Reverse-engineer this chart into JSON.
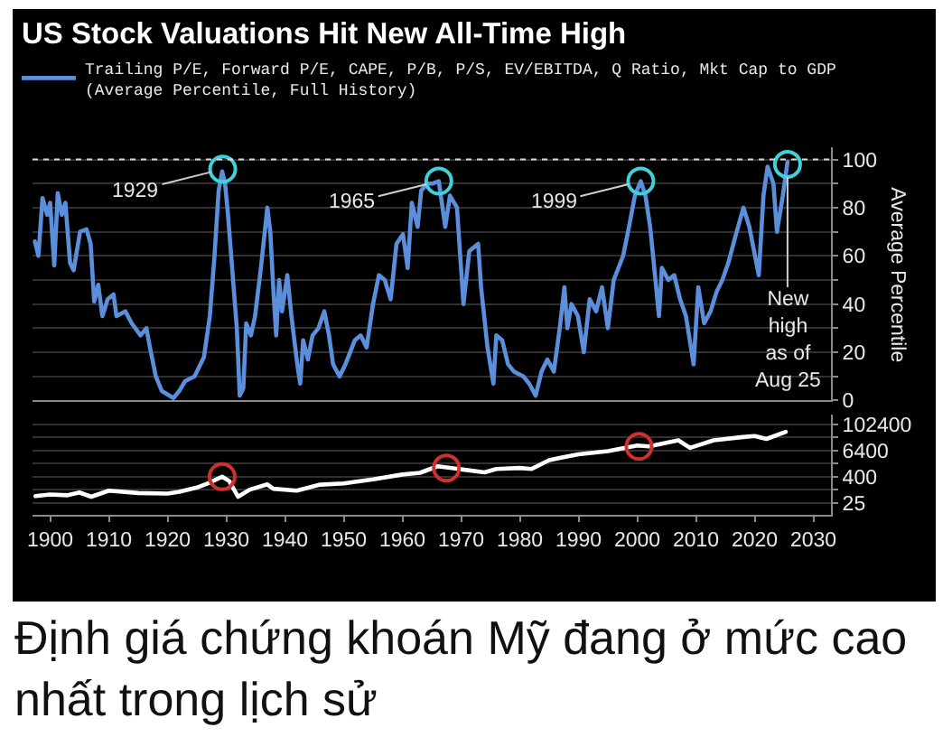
{
  "chart_data": [
    {
      "type": "line",
      "title": "US Stock Valuations Hit New All-Time High",
      "ylabel": "Average Percentile",
      "legend": "top left",
      "grid": "y",
      "tick_labels": "y",
      "xlim": [
        1897,
        2033
      ],
      "ylim": [
        0,
        105
      ],
      "yticks": [
        0,
        {
          "value": 10,
          "label": null
        },
        20,
        {
          "value": 30,
          "label": null
        },
        40,
        {
          "value": 50,
          "label": null
        },
        60,
        {
          "value": 70,
          "label": null
        },
        80,
        {
          "value": 90,
          "label": null
        },
        100
      ],
      "ref_lines": [
        {
          "axis": "y",
          "value": 100,
          "color": "#d9d9d9",
          "line_style": "dotted"
        }
      ],
      "annotations": [
        {
          "text": "1929",
          "x": 1929.4,
          "y": 96
        },
        {
          "text": "1965",
          "x": 1966.2,
          "y": 91
        },
        {
          "text": "1999",
          "x": 2000.6,
          "y": 91
        },
        {
          "text": "New high as of Aug 25",
          "x": 2025.6,
          "y": 98
        }
      ],
      "series": [
        {
          "name": "Trailing P/E, Forward P/E, CAPE, P/B, P/S, EV/EBITDA, Q Ratio, Mkt Cap to GDP (Average Percentile, Full History)",
          "color": "#5b8fdc",
          "x": [
            1897.4,
            1898,
            1898.7,
            1899.5,
            1900,
            1900.7,
            1901.3,
            1902,
            1902.6,
            1903.4,
            1904,
            1905.1,
            1906.2,
            1906.9,
            1907.5,
            1908.2,
            1908.9,
            1909.8,
            1910.8,
            1911.3,
            1912.8,
            1913.9,
            1915.4,
            1916.4,
            1917,
            1918,
            1919,
            1921,
            1922,
            1923,
            1924.6,
            1926.2,
            1927.2,
            1928,
            1928.7,
            1929.3,
            1929.8,
            1930.3,
            1931,
            1931.8,
            1932.3,
            1932.9,
            1933.4,
            1934.2,
            1934.9,
            1935.9,
            1937,
            1937.5,
            1938,
            1938.5,
            1939,
            1939.5,
            1940.4,
            1941.1,
            1942.1,
            1942.6,
            1943.1,
            1943.9,
            1944.7,
            1945.7,
            1946.7,
            1947.5,
            1948.2,
            1949.3,
            1950.3,
            1951.9,
            1952.9,
            1953.9,
            1955,
            1956,
            1957,
            1958,
            1959,
            1960.1,
            1960.9,
            1961.6,
            1962.6,
            1963.2,
            1964.2,
            1965.2,
            1966.2,
            1967.3,
            1968.1,
            1969.3,
            1970.4,
            1971.4,
            1972.9,
            1973.4,
            1974.5,
            1975.5,
            1976,
            1977,
            1978,
            1979,
            1980.6,
            1981.6,
            1982.7,
            1983.7,
            1984.7,
            1985.8,
            1986.8,
            1987.6,
            1988.1,
            1988.8,
            1989.9,
            1990.9,
            1991.9,
            1993,
            1994,
            1995,
            1996,
            1997.6,
            1998.6,
            1999.6,
            2000.6,
            2001.4,
            2002.2,
            2002.7,
            2003.7,
            2004.2,
            2005.3,
            2006.3,
            2007.3,
            2008.3,
            2009.6,
            2010.4,
            2011.4,
            2012.5,
            2013.5,
            2014.5,
            2015.5,
            2016.6,
            2018.1,
            2019.1,
            2020.7,
            2021.5,
            2022.2,
            2023.2,
            2023.8,
            2024.8,
            2025.6
          ],
          "values": [
            66,
            60,
            84,
            77,
            82,
            56,
            86,
            77,
            82,
            57,
            54,
            70,
            71,
            65,
            41,
            48,
            35,
            42,
            44,
            35,
            37,
            32,
            27,
            30,
            22,
            10,
            4,
            1,
            4,
            8,
            10,
            18,
            35,
            60,
            87,
            95,
            90,
            77,
            55,
            30,
            2,
            5,
            32,
            27,
            35,
            55,
            80,
            70,
            47,
            27,
            50,
            37,
            52,
            35,
            15,
            7,
            25,
            17,
            27,
            30,
            37,
            27,
            15,
            10,
            15,
            25,
            27,
            22,
            40,
            52,
            50,
            42,
            65,
            69,
            55,
            82,
            72,
            87,
            90,
            90,
            91,
            72,
            85,
            80,
            40,
            62,
            65,
            47,
            22,
            7,
            27,
            25,
            15,
            12,
            10,
            7,
            2,
            12,
            17,
            12,
            30,
            47,
            30,
            40,
            35,
            20,
            42,
            37,
            47,
            30,
            50,
            60,
            72,
            85,
            91,
            85,
            72,
            60,
            35,
            55,
            50,
            52,
            42,
            35,
            15,
            47,
            32,
            37,
            45,
            50,
            57,
            67,
            80,
            72,
            52,
            85,
            97,
            90,
            70,
            85,
            99
          ]
        },
        {
          "type": "scatter",
          "marker": "circle",
          "color": "#3fd0dc",
          "x": [
            1929.4,
            1966.2,
            2000.6,
            2025.6
          ],
          "values": [
            96,
            91,
            91,
            98
          ]
        }
      ]
    },
    {
      "type": "line",
      "xlim": [
        1897,
        2033
      ],
      "xticks": [
        1900,
        1910,
        1920,
        1930,
        1940,
        1950,
        1960,
        1970,
        1980,
        1990,
        2000,
        2010,
        2020,
        2030
      ],
      "ylim": [
        7,
        300000
      ],
      "log": "y",
      "grid": "y",
      "yticks": [
        25,
        {
          "value": 100,
          "label": null
        },
        400,
        {
          "value": 1600,
          "label": null
        },
        6400,
        {
          "value": 25600,
          "label": null
        },
        102400
      ],
      "annotations": [
        "Định giá chứng khoán Mỹ đang ở mức cao nhất trong lịch sử"
      ],
      "series": [
        {
          "color": "#ffffff",
          "x": [
            1897.5,
            1900,
            1903,
            1905,
            1907,
            1910,
            1915,
            1920,
            1922,
            1925,
            1927,
            1929.3,
            1930.5,
            1932,
            1934,
            1937,
            1938,
            1942,
            1946,
            1950,
            1955,
            1960,
            1963,
            1966,
            1970,
            1974,
            1976,
            1980,
            1982,
            1985,
            1987,
            1990,
            1995,
            2000,
            2002,
            2007,
            2009,
            2013,
            2018,
            2020,
            2022,
            2025.3
          ],
          "values": [
            50,
            60,
            55,
            74,
            47,
            90,
            70,
            66,
            80,
            125,
            200,
            400,
            250,
            47,
            100,
            175,
            110,
            90,
            170,
            195,
            300,
            500,
            600,
            1200,
            870,
            630,
            900,
            1000,
            900,
            2300,
            3000,
            4300,
            6000,
            11000,
            10000,
            19000,
            8500,
            19000,
            27000,
            30000,
            22000,
            47000
          ]
        },
        {
          "type": "scatter",
          "marker": "circle",
          "color": "#d0312d",
          "x": [
            1929.3,
            1967.5,
            2000.3
          ],
          "values": [
            400,
            1000,
            10000
          ]
        }
      ]
    }
  ]
}
